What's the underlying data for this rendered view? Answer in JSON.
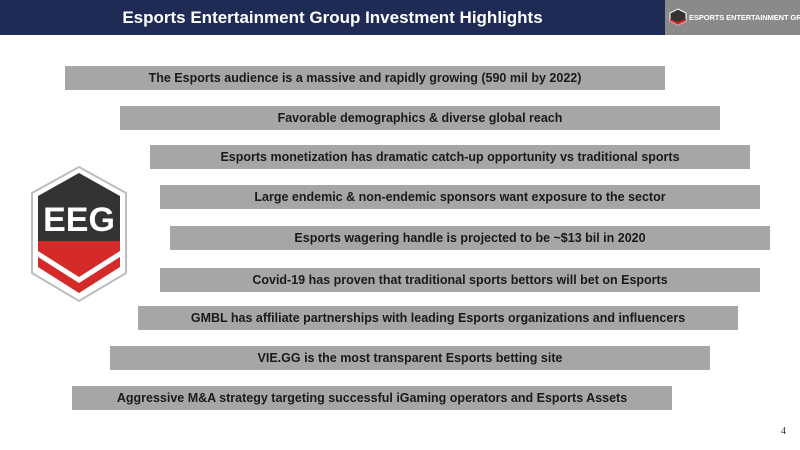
{
  "header": {
    "title": "Esports Entertainment Group Investment Highlights",
    "brand_text": "ESPORTS ENTERTAINMENT GROUP"
  },
  "logo": {
    "text": "EEG"
  },
  "highlights": [
    "The Esports audience is a massive and rapidly growing (590 mil by 2022)",
    "Favorable demographics & diverse global reach",
    "Esports monetization has dramatic catch-up opportunity vs traditional sports",
    "Large endemic & non-endemic sponsors want exposure to the sector",
    "Esports wagering handle is projected to be ~$13 bil in 2020",
    "Covid-19 has proven that traditional sports bettors will bet on Esports",
    "GMBL has affiliate partnerships with leading Esports organizations and influencers",
    "VIE.GG is the most transparent Esports betting site",
    "Aggressive M&A strategy targeting successful iGaming operators and Esports Assets"
  ],
  "page_number": "4",
  "colors": {
    "header_bg": "#1f2b54",
    "brand_bg": "#8a8a8a",
    "bar_bg": "#a6a6a6",
    "logo_dark": "#333333",
    "logo_red": "#d42a2a"
  }
}
